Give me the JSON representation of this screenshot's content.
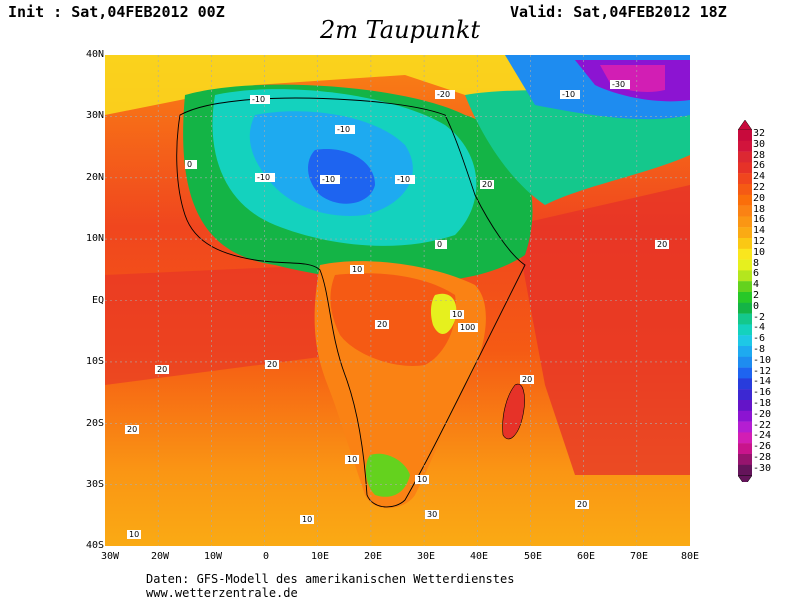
{
  "header": {
    "init": "Init : Sat,04FEB2012 00Z",
    "valid": "Valid: Sat,04FEB2012 18Z",
    "title": "2m Taupunkt"
  },
  "axes": {
    "lat_labels": [
      "40N",
      "30N",
      "20N",
      "10N",
      "EQ",
      "10S",
      "20S",
      "30S",
      "40S"
    ],
    "lon_labels": [
      "30W",
      "20W",
      "10W",
      "0",
      "10E",
      "20E",
      "30E",
      "40E",
      "50E",
      "60E",
      "70E",
      "80E"
    ]
  },
  "colorbar": {
    "labels": [
      "32",
      "30",
      "28",
      "26",
      "24",
      "22",
      "20",
      "18",
      "16",
      "14",
      "12",
      "10",
      "8",
      "6",
      "4",
      "2",
      "0",
      "-2",
      "-4",
      "-6",
      "-8",
      "-10",
      "-12",
      "-14",
      "-16",
      "-18",
      "-20",
      "-22",
      "-24",
      "-26",
      "-28",
      "-30"
    ],
    "colors": [
      "#c80a3c",
      "#d2143c",
      "#dc2832",
      "#e63228",
      "#f0461e",
      "#f55a14",
      "#fa6e0a",
      "#fa8214",
      "#fa9614",
      "#faaa14",
      "#fac814",
      "#fae61e",
      "#e6f01e",
      "#b4e61e",
      "#64d21e",
      "#28c828",
      "#14b446",
      "#14c88c",
      "#14d2be",
      "#1ec8e6",
      "#1eaaf0",
      "#1e8cf0",
      "#1e64f0",
      "#283cdc",
      "#3c28d2",
      "#6414c8",
      "#8c14d2",
      "#b41ed2",
      "#d21eb4",
      "#c8148c",
      "#96146e",
      "#64145a"
    ]
  },
  "map": {
    "contour_labels": [
      "-10",
      "0",
      "10",
      "20",
      "30",
      "100",
      "-20",
      "-30"
    ]
  },
  "footer": {
    "line1": "Daten: GFS-Modell des amerikanischen Wetterdienstes",
    "line2": "www.wetterzentrale.de"
  }
}
